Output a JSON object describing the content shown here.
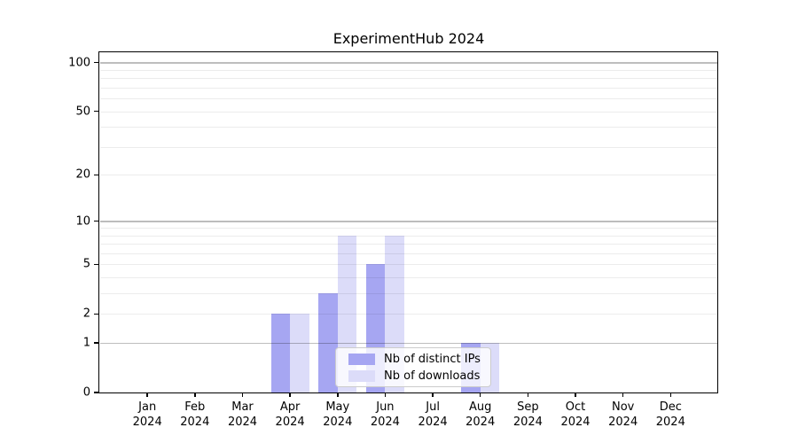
{
  "chart_data": {
    "type": "bar",
    "title": "ExperimentHub 2024",
    "categories": [
      "Jan",
      "Feb",
      "Mar",
      "Apr",
      "May",
      "Jun",
      "Jul",
      "Aug",
      "Sep",
      "Oct",
      "Nov",
      "Dec"
    ],
    "year_label": "2024",
    "series": [
      {
        "name": "Nb of distinct IPs",
        "color": "#a6a6f2",
        "values": [
          0,
          0,
          0,
          2,
          3,
          5,
          0,
          1,
          0,
          0,
          0,
          0
        ]
      },
      {
        "name": "Nb of downloads",
        "color": "#dcdcf9",
        "values": [
          0,
          0,
          0,
          2,
          8,
          8,
          0,
          1,
          0,
          0,
          0,
          0
        ]
      }
    ],
    "xlabel": "",
    "ylabel": "",
    "y_axis": {
      "scale": "log1p",
      "tick_labels": [
        0,
        1,
        2,
        5,
        10,
        20,
        50,
        100
      ],
      "major_gridlines": [
        1,
        10,
        100
      ],
      "minor_gridlines": [
        2,
        3,
        4,
        5,
        6,
        7,
        8,
        9,
        20,
        30,
        40,
        50,
        60,
        70,
        80,
        90
      ],
      "ylim": [
        0,
        114
      ]
    },
    "grid": true,
    "legend": {
      "position": "lower-center",
      "entries": [
        "Nb of distinct IPs",
        "Nb of downloads"
      ]
    }
  }
}
